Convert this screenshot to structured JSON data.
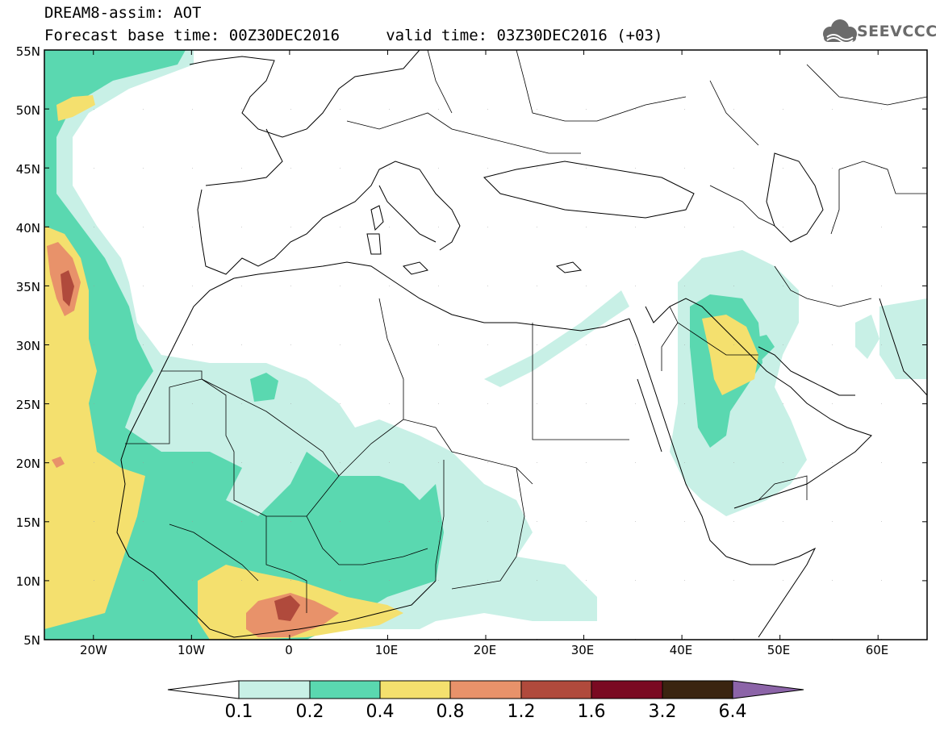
{
  "header": {
    "line1": "DREAM8-assim: AOT",
    "line2": "Forecast base time: 00Z30DEC2016     valid time: 03Z30DEC2016 (+03)",
    "logo_text": "SEEVCCC"
  },
  "map": {
    "lat_labels": [
      "55N",
      "50N",
      "45N",
      "40N",
      "35N",
      "30N",
      "25N",
      "20N",
      "15N",
      "10N",
      "5N"
    ],
    "lon_labels": [
      "20W",
      "10W",
      "0",
      "10E",
      "20E",
      "30E",
      "40E",
      "50E",
      "60E"
    ]
  },
  "legend": {
    "labels": [
      "0.1",
      "0.2",
      "0.4",
      "0.8",
      "1.2",
      "1.6",
      "3.2",
      "6.4"
    ],
    "colors": [
      "#ffffff",
      "#c8f0e6",
      "#5ad8b0",
      "#f4e06e",
      "#e8926a",
      "#b04a3c",
      "#7a0a22",
      "#3a2410",
      "#8c64a8"
    ]
  },
  "colors": {
    "c01": "#c8f0e6",
    "c02": "#5ad8b0",
    "c04": "#f4e06e",
    "c08": "#e8926a",
    "c12": "#b04a3c"
  }
}
